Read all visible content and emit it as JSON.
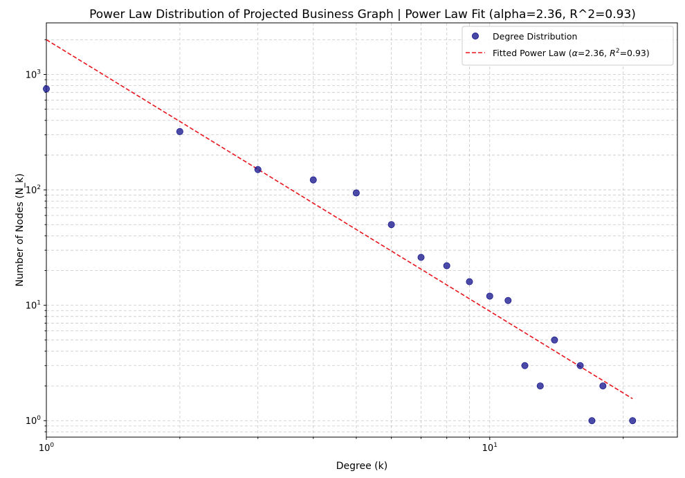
{
  "chart_data": {
    "type": "scatter",
    "title": "Power Law Distribution of Projected Business Graph | Power Law Fit (alpha=2.36, R^2=0.93)",
    "xlabel": "Degree (k)",
    "ylabel": "Number of Nodes (N_k)",
    "x_scale": "log",
    "y_scale": "log",
    "xlim": [
      1,
      26.5
    ],
    "ylim": [
      0.72,
      2800
    ],
    "grid": true,
    "legend_position": "top-right",
    "x_ticks": [
      {
        "value": 1,
        "base": "10",
        "exp": "0"
      },
      {
        "value": 10,
        "base": "10",
        "exp": "1"
      }
    ],
    "y_ticks": [
      {
        "value": 1,
        "base": "10",
        "exp": "0"
      },
      {
        "value": 10,
        "base": "10",
        "exp": "1"
      },
      {
        "value": 100,
        "base": "10",
        "exp": "2"
      },
      {
        "value": 1000,
        "base": "10",
        "exp": "3"
      }
    ],
    "series": [
      {
        "name": "Degree Distribution",
        "kind": "scatter",
        "color": "#1a1a8f",
        "x": [
          1,
          2,
          3,
          4,
          5,
          6,
          7,
          8,
          9,
          10,
          11,
          12,
          13,
          14,
          16,
          17,
          18,
          21
        ],
        "y": [
          750,
          320,
          150,
          122,
          94,
          50,
          26,
          22,
          16,
          12,
          11,
          3,
          2,
          5,
          3,
          1,
          2,
          1
        ]
      },
      {
        "name": "Fitted Power Law (α=2.36, R²=0.93)",
        "kind": "line",
        "style": "dashed",
        "color": "#e8141c",
        "x": [
          1,
          21
        ],
        "y": [
          2000,
          1.55
        ]
      }
    ],
    "legend": [
      {
        "label": "Degree Distribution"
      },
      {
        "label_prefix": "Fitted Power Law (",
        "alpha_symbol": "α",
        "alpha_value": "=2.36, ",
        "r_symbol": "R",
        "r_exp": "2",
        "r_value": "=0.93)"
      }
    ]
  }
}
